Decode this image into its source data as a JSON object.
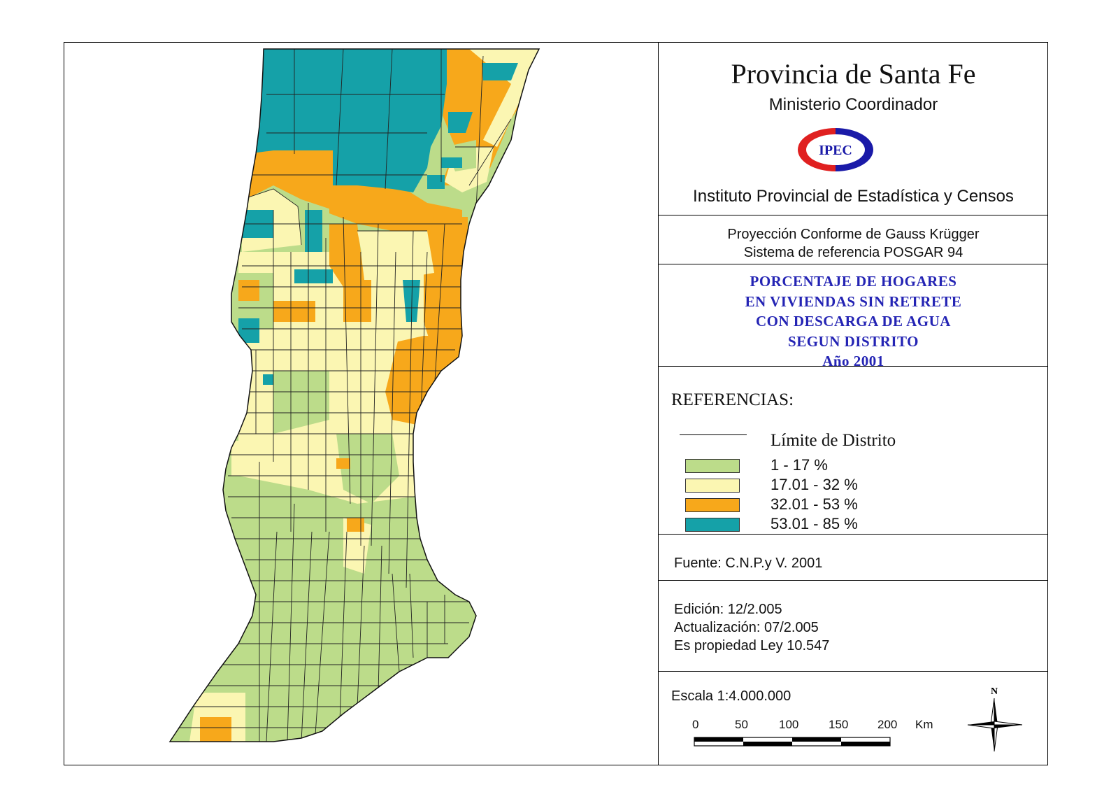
{
  "header": {
    "title": "Provincia de Santa Fe",
    "subtitle": "Ministerio Coordinador",
    "logo_text": "IPEC",
    "institute": "Instituto Provincial de Estadística y Censos"
  },
  "projection": {
    "line1": "Proyección Conforme de Gauss Krügger",
    "line2": "Sistema de referencia POSGAR 94"
  },
  "theme": {
    "line1": "PORCENTAJE DE HOGARES",
    "line2": "EN VIVIENDAS SIN RETRETE",
    "line3": "CON DESCARGA DE AGUA",
    "line4": "SEGUN DISTRITO",
    "line5": "Año 2001"
  },
  "legend": {
    "title": "REFERENCIAS:",
    "boundary_label": "Límite de Distrito",
    "classes": [
      {
        "label": "1 - 17 %",
        "color": "#bcdc8a"
      },
      {
        "label": "17.01 - 32 %",
        "color": "#fbf6b2"
      },
      {
        "label": "32.01 - 53 %",
        "color": "#f7a81b"
      },
      {
        "label": "53.01 - 85 %",
        "color": "#15a1a8"
      }
    ]
  },
  "source": {
    "text": "Fuente:  C.N.P.y V. 2001"
  },
  "edition": {
    "line1": "Edición:  12/2.005",
    "line2": "Actualización:  07/2.005",
    "line3": "Es propiedad Ley 10.547"
  },
  "scale": {
    "label": "Escala 1:4.000.000",
    "ticks": [
      "0",
      "50",
      "100",
      "150",
      "200"
    ],
    "unit": "Km",
    "north": "N"
  }
}
